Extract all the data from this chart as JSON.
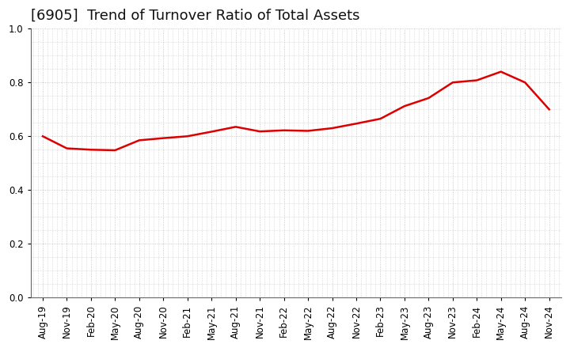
{
  "title": "[6905]  Trend of Turnover Ratio of Total Assets",
  "x_labels": [
    "Aug-19",
    "Nov-19",
    "Feb-20",
    "May-20",
    "Aug-20",
    "Nov-20",
    "Feb-21",
    "May-21",
    "Aug-21",
    "Nov-21",
    "Feb-22",
    "May-22",
    "Aug-22",
    "Nov-22",
    "Feb-23",
    "May-23",
    "Aug-23",
    "Nov-23",
    "Feb-24",
    "May-24",
    "Aug-24",
    "Nov-24"
  ],
  "values": [
    0.6,
    0.555,
    0.55,
    0.548,
    0.585,
    0.593,
    0.6,
    0.617,
    0.635,
    0.618,
    0.622,
    0.62,
    0.63,
    0.647,
    0.665,
    0.712,
    0.742,
    0.8,
    0.808,
    0.84,
    0.8,
    0.7
  ],
  "line_color": "#dd0000",
  "line_width": 1.8,
  "ylim": [
    0.0,
    1.0
  ],
  "yticks": [
    0.0,
    0.2,
    0.4,
    0.6,
    0.8,
    1.0
  ],
  "background_color": "#ffffff",
  "plot_background_color": "#ffffff",
  "grid_color": "#bbbbbb",
  "title_fontsize": 13,
  "tick_fontsize": 8.5,
  "title_color": "#111111"
}
